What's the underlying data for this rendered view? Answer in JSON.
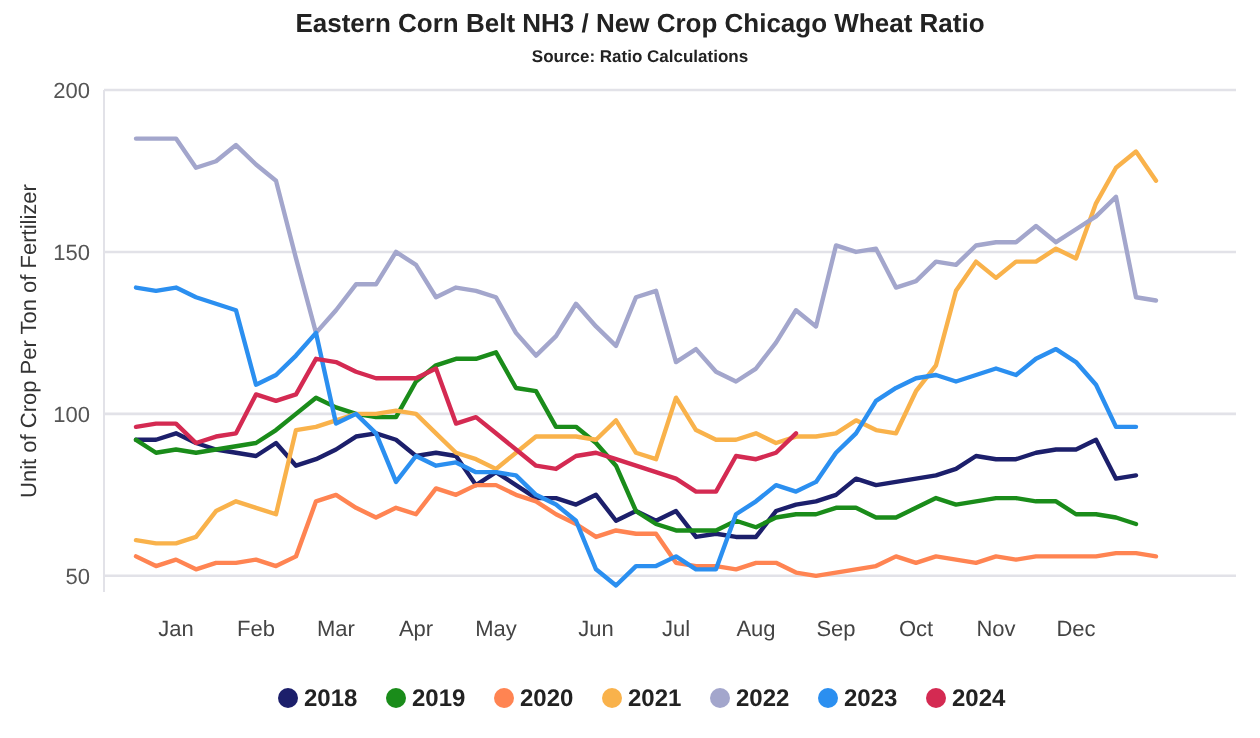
{
  "chart_data": {
    "type": "line",
    "title": "Eastern Corn Belt NH3 / New Crop Chicago Wheat Ratio",
    "subtitle": "Source: Ratio Calculations",
    "ylabel": "Unit of Crop Per Ton of Fertilizer",
    "categories": [
      null,
      null,
      "Jan",
      null,
      null,
      null,
      "Feb",
      null,
      null,
      null,
      "Mar",
      null,
      null,
      null,
      "Apr",
      null,
      null,
      null,
      "May",
      null,
      null,
      null,
      null,
      "Jun",
      null,
      null,
      null,
      "Jul",
      null,
      null,
      null,
      "Aug",
      null,
      null,
      null,
      "Sep",
      null,
      null,
      null,
      "Oct",
      null,
      null,
      null,
      "Nov",
      null,
      null,
      null,
      "Dec",
      null,
      null,
      null,
      null
    ],
    "ylim": [
      45,
      200
    ],
    "yticks": [
      50,
      100,
      150,
      200
    ],
    "grid": "y",
    "legend": "bottom",
    "marker": "none",
    "line_style": "solid",
    "series": [
      {
        "name": "2018",
        "color": "#1c1f6b",
        "values": [
          92,
          92,
          94,
          91,
          89,
          88,
          87,
          91,
          84,
          86,
          89,
          93,
          94,
          92,
          87,
          88,
          87,
          78,
          82,
          78,
          74,
          74,
          72,
          75,
          67,
          70,
          67,
          70,
          62,
          63,
          62,
          62,
          70,
          72,
          73,
          75,
          80,
          78,
          79,
          80,
          81,
          83,
          87,
          86,
          86,
          88,
          89,
          89,
          92,
          80,
          81,
          null
        ]
      },
      {
        "name": "2019",
        "color": "#1a8c1a",
        "values": [
          92,
          88,
          89,
          88,
          89,
          90,
          91,
          95,
          100,
          105,
          102,
          100,
          99,
          99,
          110,
          115,
          117,
          117,
          119,
          108,
          107,
          96,
          96,
          91,
          84,
          70,
          66,
          64,
          64,
          64,
          67,
          65,
          68,
          69,
          69,
          71,
          71,
          68,
          68,
          71,
          74,
          72,
          73,
          74,
          74,
          73,
          73,
          69,
          69,
          68,
          66,
          null
        ]
      },
      {
        "name": "2020",
        "color": "#ff8452",
        "values": [
          56,
          53,
          55,
          52,
          54,
          54,
          55,
          53,
          56,
          73,
          75,
          71,
          68,
          71,
          69,
          77,
          75,
          78,
          78,
          75,
          73,
          69,
          66,
          62,
          64,
          63,
          63,
          54,
          53,
          53,
          52,
          54,
          54,
          51,
          50,
          51,
          52,
          53,
          56,
          54,
          56,
          55,
          54,
          56,
          55,
          56,
          56,
          56,
          56,
          57,
          57,
          56
        ]
      },
      {
        "name": "2021",
        "color": "#f9b24b",
        "values": [
          61,
          60,
          60,
          62,
          70,
          73,
          71,
          69,
          95,
          96,
          98,
          100,
          100,
          101,
          100,
          94,
          88,
          86,
          83,
          88,
          93,
          93,
          93,
          92,
          98,
          88,
          86,
          105,
          95,
          92,
          92,
          94,
          91,
          93,
          93,
          94,
          98,
          95,
          94,
          107,
          115,
          138,
          147,
          142,
          147,
          147,
          151,
          148,
          165,
          176,
          181,
          172
        ]
      },
      {
        "name": "2022",
        "color": "#a3a6cc",
        "values": [
          185,
          185,
          185,
          176,
          178,
          183,
          177,
          172,
          148,
          125,
          132,
          140,
          140,
          150,
          146,
          136,
          139,
          138,
          136,
          125,
          118,
          124,
          134,
          127,
          121,
          136,
          138,
          116,
          120,
          113,
          110,
          114,
          122,
          132,
          127,
          152,
          150,
          151,
          139,
          141,
          147,
          146,
          152,
          153,
          153,
          158,
          153,
          157,
          161,
          167,
          136,
          135
        ]
      },
      {
        "name": "2023",
        "color": "#2b8ff0",
        "values": [
          139,
          138,
          139,
          136,
          134,
          132,
          109,
          112,
          118,
          125,
          97,
          100,
          94,
          79,
          87,
          84,
          85,
          82,
          82,
          81,
          75,
          72,
          67,
          52,
          47,
          53,
          53,
          56,
          52,
          52,
          69,
          73,
          78,
          76,
          79,
          88,
          94,
          104,
          108,
          111,
          112,
          110,
          112,
          114,
          112,
          117,
          120,
          116,
          109,
          96,
          96,
          null
        ]
      },
      {
        "name": "2024",
        "color": "#d42a52",
        "values": [
          96,
          97,
          97,
          91,
          93,
          94,
          106,
          104,
          106,
          117,
          116,
          113,
          111,
          111,
          111,
          114,
          97,
          99,
          94,
          89,
          84,
          83,
          87,
          88,
          86,
          84,
          82,
          80,
          76,
          76,
          87,
          86,
          88,
          94,
          null,
          null,
          null,
          null,
          null,
          null,
          null,
          null,
          null,
          null,
          null,
          null,
          null,
          null,
          null,
          null,
          null,
          null
        ]
      }
    ]
  }
}
